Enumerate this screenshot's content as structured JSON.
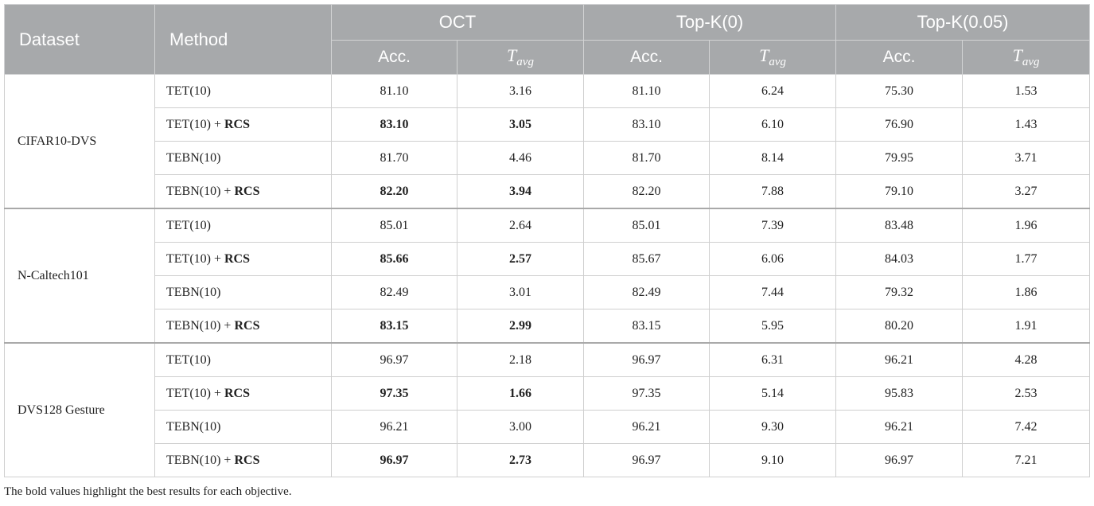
{
  "header": {
    "dataset": "Dataset",
    "method": "Method",
    "groups": [
      "OCT",
      "Top-K(0)",
      "Top-K(0.05)"
    ],
    "acc": "Acc.",
    "tavg_base": "T",
    "tavg_sub": "avg"
  },
  "datasets": [
    {
      "name": "CIFAR10-DVS",
      "rows": [
        {
          "method": "TET(10)",
          "suffix": "",
          "values": [
            "81.10",
            "3.16",
            "81.10",
            "6.24",
            "75.30",
            "1.53"
          ],
          "bold": [
            false,
            false,
            false,
            false,
            false,
            false
          ]
        },
        {
          "method": "TET(10) + ",
          "suffix": "RCS",
          "values": [
            "83.10",
            "3.05",
            "83.10",
            "6.10",
            "76.90",
            "1.43"
          ],
          "bold": [
            true,
            true,
            false,
            false,
            false,
            false
          ]
        },
        {
          "method": "TEBN(10)",
          "suffix": "",
          "values": [
            "81.70",
            "4.46",
            "81.70",
            "8.14",
            "79.95",
            "3.71"
          ],
          "bold": [
            false,
            false,
            false,
            false,
            false,
            false
          ]
        },
        {
          "method": "TEBN(10) + ",
          "suffix": "RCS",
          "values": [
            "82.20",
            "3.94",
            "82.20",
            "7.88",
            "79.10",
            "3.27"
          ],
          "bold": [
            true,
            true,
            false,
            false,
            false,
            false
          ]
        }
      ]
    },
    {
      "name": "N-Caltech101",
      "rows": [
        {
          "method": "TET(10)",
          "suffix": "",
          "values": [
            "85.01",
            "2.64",
            "85.01",
            "7.39",
            "83.48",
            "1.96"
          ],
          "bold": [
            false,
            false,
            false,
            false,
            false,
            false
          ]
        },
        {
          "method": "TET(10) + ",
          "suffix": "RCS",
          "values": [
            "85.66",
            "2.57",
            "85.67",
            "6.06",
            "84.03",
            "1.77"
          ],
          "bold": [
            true,
            true,
            false,
            false,
            false,
            false
          ]
        },
        {
          "method": "TEBN(10)",
          "suffix": "",
          "values": [
            "82.49",
            "3.01",
            "82.49",
            "7.44",
            "79.32",
            "1.86"
          ],
          "bold": [
            false,
            false,
            false,
            false,
            false,
            false
          ]
        },
        {
          "method": "TEBN(10) + ",
          "suffix": "RCS",
          "values": [
            "83.15",
            "2.99",
            "83.15",
            "5.95",
            "80.20",
            "1.91"
          ],
          "bold": [
            true,
            true,
            false,
            false,
            false,
            false
          ]
        }
      ]
    },
    {
      "name": "DVS128 Gesture",
      "rows": [
        {
          "method": "TET(10)",
          "suffix": "",
          "values": [
            "96.97",
            "2.18",
            "96.97",
            "6.31",
            "96.21",
            "4.28"
          ],
          "bold": [
            false,
            false,
            false,
            false,
            false,
            false
          ]
        },
        {
          "method": "TET(10) + ",
          "suffix": "RCS",
          "values": [
            "97.35",
            "1.66",
            "97.35",
            "5.14",
            "95.83",
            "2.53"
          ],
          "bold": [
            true,
            true,
            false,
            false,
            false,
            false
          ]
        },
        {
          "method": "TEBN(10)",
          "suffix": "",
          "values": [
            "96.21",
            "3.00",
            "96.21",
            "9.30",
            "96.21",
            "7.42"
          ],
          "bold": [
            false,
            false,
            false,
            false,
            false,
            false
          ]
        },
        {
          "method": "TEBN(10) + ",
          "suffix": "RCS",
          "values": [
            "96.97",
            "2.73",
            "96.97",
            "9.10",
            "96.97",
            "7.21"
          ],
          "bold": [
            true,
            true,
            false,
            false,
            false,
            false
          ]
        }
      ]
    }
  ],
  "footnote": "The bold values highlight the best results for each objective."
}
